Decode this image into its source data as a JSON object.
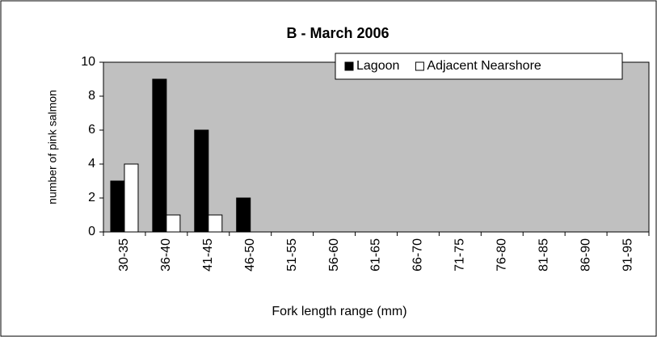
{
  "chart_data": {
    "type": "bar",
    "title": "B - March 2006",
    "x_label": "Fork length range (mm)",
    "y_label": "number of pink salmon",
    "categories": [
      "30-35",
      "36-40",
      "41-45",
      "46-50",
      "51-55",
      "56-60",
      "61-65",
      "66-70",
      "71-75",
      "76-80",
      "81-85",
      "86-90",
      "91-95"
    ],
    "series": [
      {
        "name": "Lagoon",
        "color": "#000000",
        "values": [
          3,
          9,
          6,
          2,
          0,
          0,
          0,
          0,
          0,
          0,
          0,
          0,
          0
        ]
      },
      {
        "name": "Adjacent Nearshore",
        "color": "#ffffff",
        "values": [
          4,
          1,
          1,
          0,
          0,
          0,
          0,
          0,
          0,
          0,
          0,
          0,
          0
        ]
      }
    ],
    "ylim": [
      0,
      10
    ],
    "yticks": [
      0,
      2,
      4,
      6,
      8,
      10
    ],
    "grid": false,
    "legend": "top-right",
    "plot_background": "#c0c0c0"
  }
}
